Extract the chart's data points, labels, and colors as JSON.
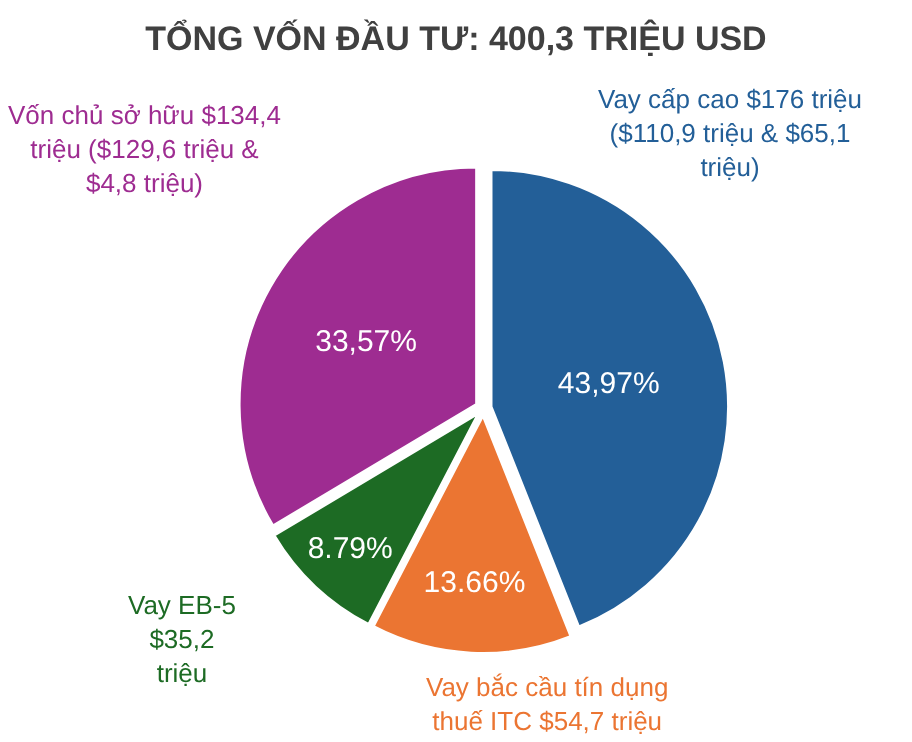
{
  "chart_data": {
    "type": "pie",
    "title": "TỔNG VỐN ĐẦU TƯ: 400,3 TRIỆU USD",
    "categories": [
      "Vay cấp cao $176 triệu ($110,9 triệu & $65,1 triệu)",
      "Vay bắc cầu tín dụng thuế ITC $54,7 triệu",
      "Vay EB-5 $35,2 triệu",
      "Vốn chủ sở hữu $134,4 triệu ($129,6 triệu & $4,8 triệu)"
    ],
    "values": [
      43.97,
      13.66,
      8.79,
      33.57
    ],
    "value_labels": [
      "43,97%",
      "13.66%",
      "8.79%",
      "33,57%"
    ],
    "colors": [
      "#235f98",
      "#eb7532",
      "#1d6b24",
      "#9e2c91"
    ],
    "legend": false
  }
}
